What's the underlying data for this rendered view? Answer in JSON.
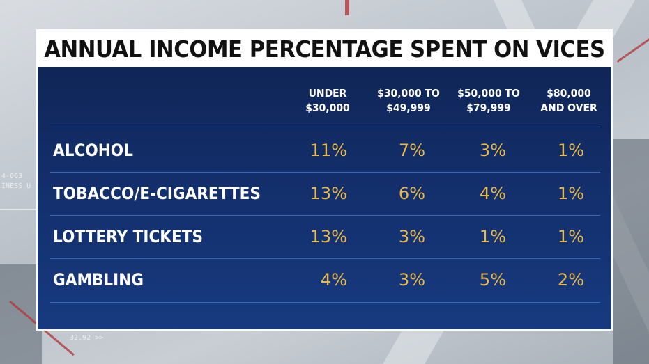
{
  "chart_data": {
    "type": "table",
    "title": "ANNUAL INCOME PERCENTAGE SPENT ON VICES",
    "columns": [
      {
        "line1": "UNDER",
        "line2": "$30,000"
      },
      {
        "line1": "$30,000 TO",
        "line2": "$49,999"
      },
      {
        "line1": "$50,000 TO",
        "line2": "$79,999"
      },
      {
        "line1": "$80,000",
        "line2": "AND OVER"
      }
    ],
    "rows": [
      {
        "label": "ALCOHOL",
        "values": [
          "11%",
          "7%",
          "3%",
          "1%"
        ]
      },
      {
        "label": "TOBACCO/E-CIGARETTES",
        "values": [
          "13%",
          "6%",
          "4%",
          "1%"
        ]
      },
      {
        "label": "LOTTERY TICKETS",
        "values": [
          "13%",
          "3%",
          "1%",
          "1%"
        ]
      },
      {
        "label": "GAMBLING",
        "values": [
          "4%",
          "3%",
          "5%",
          "2%"
        ]
      }
    ],
    "colors": {
      "panel": "#122c66",
      "value": "#e8b84a",
      "label": "#ffffff",
      "title_bg": "#ffffff"
    }
  },
  "background": {
    "ticker_1": "4-663",
    "ticker_2": "INESS U",
    "ticker_3": "32.92 >>"
  }
}
